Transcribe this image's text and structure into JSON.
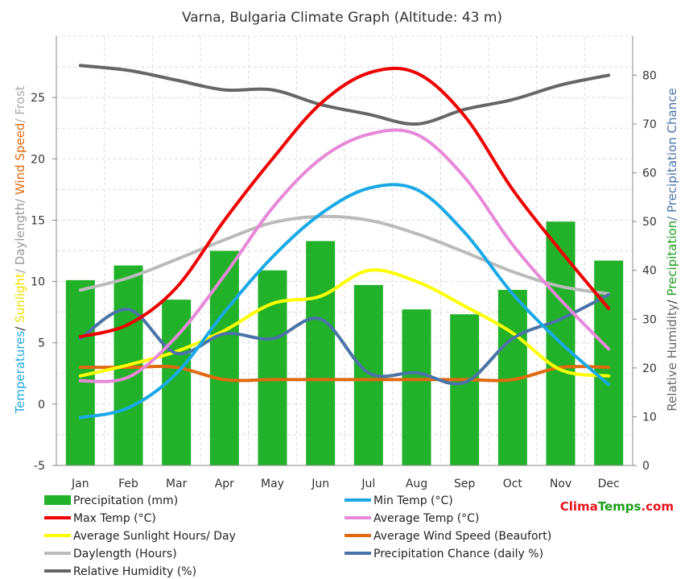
{
  "title": "Varna, Bulgaria Climate Graph (Altitude: 43 m)",
  "brand": {
    "part1": "Clima",
    "part2": "Temps",
    "part3": ".com",
    "color1": "#e8141c",
    "color2": "#1e9f1e"
  },
  "left_axis": {
    "parts": [
      {
        "text": "Temperatures",
        "color": "#22aadd"
      },
      {
        "text": "/ ",
        "color": "#333333"
      },
      {
        "text": "Sunlight",
        "color": "#f0e000"
      },
      {
        "text": "/ Daylength/ ",
        "color": "#999999"
      },
      {
        "text": "Wind Speed",
        "color": "#e06a10"
      },
      {
        "text": "/ Frost",
        "color": "#aaaaaa"
      }
    ]
  },
  "right_axis": {
    "parts": [
      {
        "text": "Relative Humidity",
        "color": "#666666"
      },
      {
        "text": "/ ",
        "color": "#333333"
      },
      {
        "text": "Precipitation",
        "color": "#1e9f1e"
      },
      {
        "text": "/ Precipitation Chance",
        "color": "#4a74a8"
      }
    ]
  },
  "chart_data": {
    "type": "bar",
    "title": "Varna, Bulgaria Climate Graph (Altitude: 43 m)",
    "categories": [
      "Jan",
      "Feb",
      "Mar",
      "Apr",
      "May",
      "Jun",
      "Jul",
      "Aug",
      "Sep",
      "Oct",
      "Nov",
      "Dec"
    ],
    "left_ylim": [
      -5,
      30
    ],
    "left_ticks": [
      -5,
      0,
      5,
      10,
      15,
      20,
      25
    ],
    "right_ylim": [
      0,
      88
    ],
    "right_ticks": [
      0,
      10,
      20,
      30,
      40,
      50,
      60,
      70,
      80
    ],
    "grid": true,
    "legend_position": "bottom",
    "series": [
      {
        "name": "Precipitation (mm)",
        "kind": "bar",
        "axis": "right",
        "color": "#22b22a",
        "values": [
          38,
          41,
          34,
          44,
          40,
          46,
          37,
          32,
          31,
          36,
          50,
          42
        ]
      },
      {
        "name": "Min Temp (°C)",
        "kind": "line",
        "axis": "left",
        "color": "#1aa9e6",
        "values": [
          -1.1,
          -0.3,
          2.5,
          7.5,
          12.0,
          15.5,
          17.6,
          17.5,
          14.0,
          9.0,
          5.0,
          1.6
        ]
      },
      {
        "name": "Max Temp (°C)",
        "kind": "line",
        "axis": "left",
        "color": "#ee0000",
        "values": [
          5.5,
          6.5,
          9.5,
          15.0,
          20.0,
          24.5,
          27.0,
          27.0,
          23.5,
          17.5,
          12.5,
          7.8
        ]
      },
      {
        "name": "Average Temp (°C)",
        "kind": "line",
        "axis": "left",
        "color": "#e888d8",
        "values": [
          1.9,
          2.2,
          5.5,
          10.5,
          16.0,
          20.0,
          22.0,
          22.0,
          18.5,
          13.0,
          8.5,
          4.5
        ]
      },
      {
        "name": "Average Sunlight Hours/ Day",
        "kind": "line",
        "axis": "left",
        "color": "#ffff00",
        "values": [
          2.3,
          3.2,
          4.3,
          6.0,
          8.2,
          8.8,
          10.9,
          10.0,
          8.0,
          5.8,
          2.8,
          2.3
        ]
      },
      {
        "name": "Average Wind Speed (Beaufort)",
        "kind": "line",
        "axis": "left",
        "color": "#e06a10",
        "values": [
          3,
          3,
          3,
          2,
          2,
          2,
          2,
          2,
          2,
          2,
          3,
          3
        ]
      },
      {
        "name": "Daylength (Hours)",
        "kind": "line",
        "axis": "left",
        "color": "#bbbbbb",
        "values": [
          9.3,
          10.3,
          11.8,
          13.4,
          14.8,
          15.3,
          15.0,
          13.9,
          12.4,
          10.8,
          9.6,
          9.0
        ]
      },
      {
        "name": "Precipitation Chance (daily %)",
        "kind": "line",
        "axis": "right",
        "color": "#4a74a8",
        "values": [
          26,
          32,
          23,
          27,
          26,
          30,
          19,
          19,
          17,
          26,
          30,
          35
        ]
      },
      {
        "name": "Relative Humidity (%)",
        "kind": "line",
        "axis": "right",
        "color": "#666666",
        "values": [
          82,
          81,
          79,
          77,
          77,
          74,
          72,
          70,
          73,
          75,
          78,
          80
        ]
      }
    ]
  }
}
